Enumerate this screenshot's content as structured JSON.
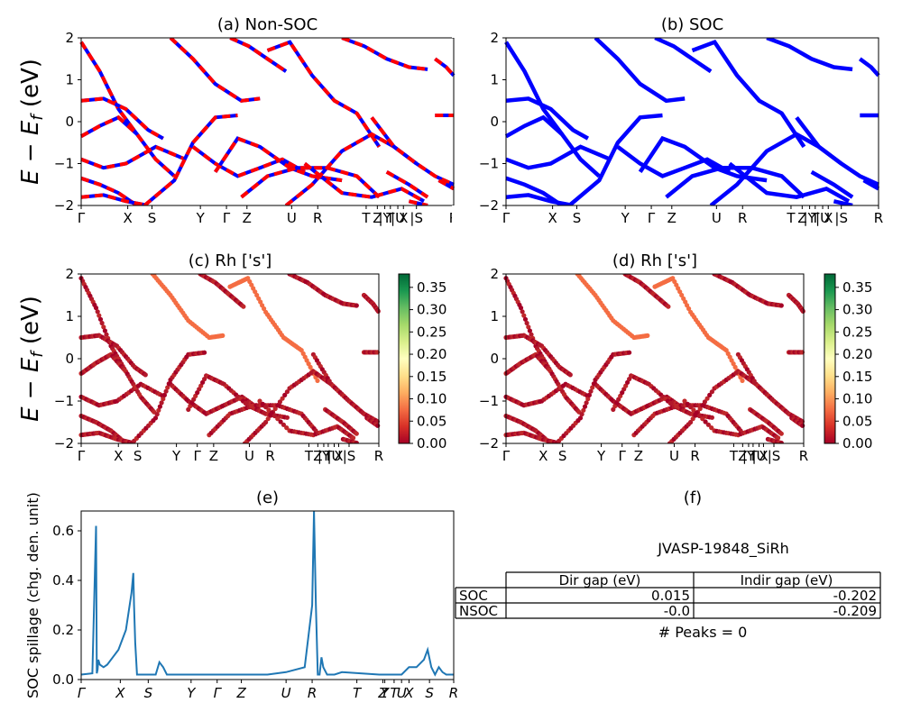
{
  "chart_data": [
    {
      "id": "a",
      "type": "line",
      "title": "(a) Non-SOC",
      "ylabel": "E − E_f (eV)",
      "ylim": [
        -2,
        2
      ],
      "yticks": [
        -2,
        -1,
        0,
        1,
        2
      ],
      "kpath": [
        "Γ",
        "X",
        "S",
        "Y",
        "Γ",
        "Z",
        "U",
        "R",
        "T",
        "Z",
        "|Y",
        "T",
        "|U",
        "X",
        "|S",
        "R"
      ],
      "series_styles": [
        {
          "name": "",
          "color": "#0000ff",
          "style": "solid"
        },
        {
          "name": "",
          "color": "#ff0000",
          "style": "dashed"
        }
      ],
      "bands": [
        {
          "x": [
            0,
            0.05,
            0.1,
            0.15
          ],
          "y": [
            1.9,
            1.2,
            0.3,
            -0.3
          ]
        },
        {
          "x": [
            0,
            0.06,
            0.12,
            0.18,
            0.22
          ],
          "y": [
            0.5,
            0.55,
            0.3,
            -0.2,
            -0.4
          ]
        },
        {
          "x": [
            0,
            0.05,
            0.1,
            0.15,
            0.2,
            0.25
          ],
          "y": [
            -0.35,
            -0.1,
            0.1,
            -0.3,
            -0.9,
            -1.3
          ]
        },
        {
          "x": [
            0,
            0.06,
            0.12,
            0.2,
            0.28
          ],
          "y": [
            -0.9,
            -1.1,
            -1.0,
            -0.6,
            -0.9
          ]
        },
        {
          "x": [
            0,
            0.05,
            0.1,
            0.15
          ],
          "y": [
            -1.35,
            -1.5,
            -1.7,
            -2.0
          ]
        },
        {
          "x": [
            0,
            0.06,
            0.12,
            0.18
          ],
          "y": [
            -1.8,
            -1.75,
            -1.9,
            -2.0
          ]
        },
        {
          "x": [
            0.17,
            0.25,
            0.3,
            0.36,
            0.42
          ],
          "y": [
            -2.0,
            -1.4,
            -0.5,
            0.1,
            0.15
          ]
        },
        {
          "x": [
            0.24,
            0.3,
            0.36,
            0.43,
            0.48
          ],
          "y": [
            2.0,
            1.5,
            0.9,
            0.5,
            0.55
          ]
        },
        {
          "x": [
            0.4,
            0.45,
            0.5,
            0.55
          ],
          "y": [
            2.0,
            1.8,
            1.5,
            1.2
          ]
        },
        {
          "x": [
            0.3,
            0.36,
            0.42,
            0.48,
            0.54,
            0.6
          ],
          "y": [
            -0.6,
            -1.0,
            -1.3,
            -1.1,
            -0.9,
            -1.2
          ]
        },
        {
          "x": [
            0.36,
            0.42,
            0.48,
            0.56,
            0.62,
            0.7
          ],
          "y": [
            -1.2,
            -0.4,
            -0.6,
            -1.1,
            -1.3,
            -1.4
          ]
        },
        {
          "x": [
            0.43,
            0.5,
            0.58,
            0.66,
            0.74,
            0.8
          ],
          "y": [
            -1.8,
            -1.3,
            -1.1,
            -1.1,
            -1.3,
            -1.8
          ]
        },
        {
          "x": [
            0.5,
            0.56,
            0.62,
            0.68,
            0.74,
            0.8
          ],
          "y": [
            1.7,
            1.9,
            1.1,
            0.5,
            0.2,
            -0.6
          ]
        },
        {
          "x": [
            0.55,
            0.62,
            0.7,
            0.78,
            0.84,
            0.9
          ],
          "y": [
            -2.0,
            -1.5,
            -0.7,
            -0.3,
            -0.6,
            -1.0
          ]
        },
        {
          "x": [
            0.6,
            0.7,
            0.78,
            0.86,
            0.92
          ],
          "y": [
            -1.0,
            -1.7,
            -1.8,
            -1.6,
            -1.9
          ]
        },
        {
          "x": [
            0.7,
            0.76,
            0.82,
            0.88,
            0.93
          ],
          "y": [
            2.0,
            1.8,
            1.5,
            1.3,
            1.25
          ]
        },
        {
          "x": [
            0.78,
            0.84,
            0.9,
            0.95,
            1.0
          ],
          "y": [
            0.1,
            -0.6,
            -1.0,
            -1.3,
            -1.5
          ]
        },
        {
          "x": [
            0.82,
            0.88,
            0.93
          ],
          "y": [
            -1.2,
            -1.5,
            -1.8
          ]
        },
        {
          "x": [
            0.88,
            0.93
          ],
          "y": [
            -1.9,
            -2.0
          ]
        },
        {
          "x": [
            0.95,
            0.98,
            1.0
          ],
          "y": [
            1.5,
            1.3,
            1.1
          ]
        },
        {
          "x": [
            0.95,
            1.0
          ],
          "y": [
            0.15,
            0.15
          ]
        },
        {
          "x": [
            0.96,
            1.0
          ],
          "y": [
            -1.4,
            -1.6
          ]
        }
      ]
    },
    {
      "id": "b",
      "type": "line",
      "title": "(b) SOC",
      "ylim": [
        -2,
        2
      ],
      "yticks": [
        -2,
        -1,
        0,
        1,
        2
      ],
      "kpath": [
        "Γ",
        "X",
        "S",
        "Y",
        "Γ",
        "Z",
        "U",
        "R",
        "T",
        "Z",
        "|Y",
        "T",
        "|U",
        "X",
        "|S",
        "R"
      ],
      "series_styles": [
        {
          "name": "",
          "color": "#0000ff",
          "style": "solid"
        }
      ]
    },
    {
      "id": "c",
      "type": "scatter",
      "title": "(c)  Rh ['s']",
      "ylabel": "E − E_f (eV)",
      "ylim": [
        -2,
        2
      ],
      "yticks": [
        -2,
        -1,
        0,
        1,
        2
      ],
      "kpath": [
        "Γ",
        "X",
        "S",
        "Y",
        "Γ",
        "Z",
        "U",
        "R",
        "T",
        "Z",
        "|Y",
        "T",
        "|U",
        "X",
        "|S",
        "R"
      ],
      "colorbar": {
        "cmap": "RdYlGn",
        "min": 0.0,
        "max": 0.38,
        "ticks": [
          "0.35",
          "0.30",
          "0.25",
          "0.20",
          "0.15",
          "0.10",
          "0.05",
          "0.00"
        ]
      }
    },
    {
      "id": "d",
      "type": "scatter",
      "title": "(d) Rh ['s']",
      "ylim": [
        -2,
        2
      ],
      "yticks": [
        -2,
        -1,
        0,
        1,
        2
      ],
      "kpath": [
        "Γ",
        "X",
        "S",
        "Y",
        "Γ",
        "Z",
        "U",
        "R",
        "T",
        "Z",
        "|Y",
        "T",
        "|U",
        "X",
        "|S",
        "R"
      ],
      "colorbar": {
        "cmap": "RdYlGn",
        "min": 0.0,
        "max": 0.38,
        "ticks": [
          "0.35",
          "0.30",
          "0.25",
          "0.20",
          "0.15",
          "0.10",
          "0.05",
          "0.00"
        ]
      }
    },
    {
      "id": "e",
      "type": "line",
      "title": "(e)",
      "ylabel": "SOC spillage (chg. den. unit)",
      "ylim": [
        0,
        0.68
      ],
      "yticks": [
        "0.0",
        "0.2",
        "0.4",
        "0.6"
      ],
      "kpath_italic": [
        "Γ",
        "X",
        "S",
        "Y",
        "Γ",
        "Z",
        "U",
        "R",
        "T",
        "Z",
        "Y",
        "T",
        "U",
        "X",
        "S",
        "R"
      ],
      "color": "#1f77b4",
      "x": [
        0,
        0.03,
        0.04,
        0.042,
        0.044,
        0.046,
        0.05,
        0.06,
        0.07,
        0.1,
        0.12,
        0.135,
        0.14,
        0.142,
        0.145,
        0.15,
        0.2,
        0.21,
        0.22,
        0.23,
        0.3,
        0.4,
        0.5,
        0.55,
        0.6,
        0.62,
        0.625,
        0.63,
        0.635,
        0.64,
        0.645,
        0.65,
        0.66,
        0.68,
        0.7,
        0.8,
        0.84,
        0.86,
        0.88,
        0.9,
        0.92,
        0.93,
        0.94,
        0.95,
        0.96,
        0.97,
        0.98,
        0.99,
        1.0
      ],
      "y": [
        0.02,
        0.025,
        0.62,
        0.025,
        0.04,
        0.08,
        0.06,
        0.05,
        0.06,
        0.12,
        0.2,
        0.35,
        0.43,
        0.3,
        0.15,
        0.02,
        0.02,
        0.07,
        0.05,
        0.02,
        0.02,
        0.02,
        0.02,
        0.03,
        0.05,
        0.3,
        0.68,
        0.3,
        0.02,
        0.02,
        0.09,
        0.05,
        0.02,
        0.02,
        0.03,
        0.02,
        0.02,
        0.02,
        0.05,
        0.05,
        0.08,
        0.12,
        0.05,
        0.02,
        0.05,
        0.03,
        0.02,
        0.02,
        0.02
      ]
    }
  ],
  "panel_f": {
    "title": "(f)",
    "name": "JVASP-19848_SiRh",
    "table": {
      "headers": [
        "",
        "Dir gap (eV)",
        "Indir gap (eV)"
      ],
      "rows": [
        [
          "SOC",
          "0.015",
          "-0.202"
        ],
        [
          "NSOC",
          "-0.0",
          "-0.209"
        ]
      ]
    },
    "peaks_text": "# Peaks = 0"
  }
}
